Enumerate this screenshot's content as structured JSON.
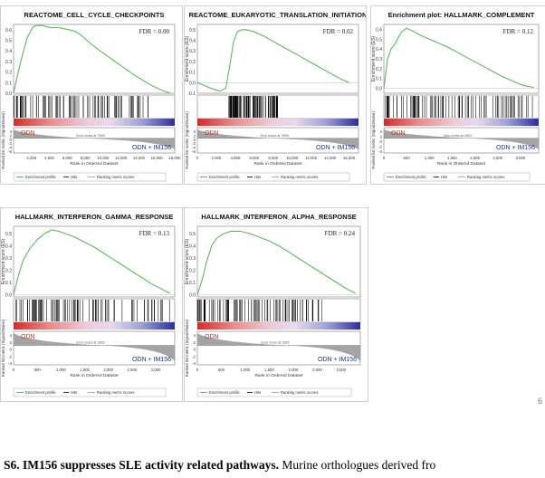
{
  "panels": [
    {
      "title": "REACTOME_CELL_CYCLE_CHECKPOINTS",
      "fdr": "FDR = 0.00",
      "es_yticks": [
        "0.6",
        "0.5",
        "0.4",
        "0.3",
        "0.2",
        "0.1",
        "0.0"
      ],
      "es_axis_label": "",
      "metric_axis_label": "Ranked list metric (Signal2Noise)",
      "metric_yticks": [
        "4",
        "2",
        "0",
        "-2",
        "-4",
        "-6"
      ],
      "xticks": [
        "2,000",
        "4,000",
        "6,000",
        "8,000",
        "10,000",
        "12,000",
        "14,000",
        "16,000",
        "18,000"
      ],
      "xlabel": "Rank in Ordered Dataset",
      "zero_cross": "Zero cross at 7800",
      "group_left": "ODN",
      "group_right": "ODN + IM156",
      "legend": [
        "Enrichment profile",
        "Hits",
        "Ranking metric scores"
      ],
      "chart_data": {
        "type": "line",
        "title": "REACTOME_CELL_CYCLE_CHECKPOINTS",
        "xlabel": "Rank in Ordered Dataset",
        "ylabel": "",
        "xlim": [
          0,
          18000
        ],
        "ylim": [
          0,
          0.65
        ],
        "series": [
          {
            "name": "Enrichment profile",
            "x": [
              0,
              300,
              800,
              1500,
              2200,
              2600,
              3200,
              4000,
              5000,
              5600,
              6200,
              7000,
              7800,
              8600,
              9500,
              10500,
              11500,
              12500,
              13500,
              14500,
              15500,
              16500,
              17500
            ],
            "values": [
              0.0,
              0.12,
              0.3,
              0.52,
              0.63,
              0.64,
              0.64,
              0.62,
              0.62,
              0.61,
              0.6,
              0.58,
              0.53,
              0.47,
              0.41,
              0.35,
              0.29,
              0.23,
              0.17,
              0.12,
              0.07,
              0.03,
              0.0
            ]
          }
        ],
        "hits_range": [
          0,
          15500
        ],
        "zero_cross": 7800
      }
    },
    {
      "title": "REACTOME_EUKARYOTIC_TRANSLATION_INITIATION",
      "fdr": "FDR = 0.02",
      "es_yticks": [
        "0.5",
        "0.4",
        "0.3",
        "0.2",
        "0.1",
        "0.0",
        "-0.1"
      ],
      "es_axis_label": "Enrichment score (ES)",
      "metric_axis_label": "Ranked list metric (Signal2Noise)",
      "metric_yticks": [
        "4",
        "2",
        "0",
        "-2",
        "-4",
        "-6"
      ],
      "xticks": [
        "0",
        "2,000",
        "4,000",
        "6,000",
        "8,000",
        "10,000",
        "12,000",
        "14,000",
        "16,000"
      ],
      "xlabel": "Rank in Ordered Dataset",
      "zero_cross": "Zero cross at 7800",
      "group_left": "ODN",
      "group_right": "ODN + IM156",
      "legend": [
        "Enrichment profile",
        "Hits",
        "Ranking metric scores"
      ],
      "chart_data": {
        "type": "line",
        "title": "REACTOME_EUKARYOTIC_TRANSLATION_INITIATION",
        "xlabel": "Rank in Ordered Dataset",
        "ylabel": "Enrichment score (ES)",
        "xlim": [
          0,
          17000
        ],
        "ylim": [
          -0.1,
          0.55
        ],
        "series": [
          {
            "name": "Enrichment profile",
            "x": [
              0,
              800,
              1600,
              2400,
              3000,
              3400,
              3800,
              4200,
              4700,
              5200,
              6000,
              7000,
              8000,
              9000,
              10000,
              11000,
              12000,
              13000,
              14000,
              15000,
              16000
            ],
            "values": [
              0.0,
              -0.03,
              -0.06,
              -0.08,
              -0.05,
              0.15,
              0.38,
              0.48,
              0.5,
              0.5,
              0.48,
              0.44,
              0.39,
              0.34,
              0.29,
              0.24,
              0.19,
              0.14,
              0.09,
              0.04,
              0.0
            ]
          }
        ],
        "hits_range": [
          3300,
          8500
        ],
        "zero_cross": 7800
      }
    },
    {
      "title": "Enrichment plot: HALLMARK_COMPLEMENT",
      "fdr": "FDR = 0.12",
      "es_yticks": [
        "0.6",
        "0.5",
        "0.4",
        "0.3",
        "0.2",
        "0.1",
        "0.0"
      ],
      "es_axis_label": "Enrichment score (ES)",
      "metric_axis_label": "Ranked list metric (Signal2Noise)",
      "metric_yticks": [
        "4",
        "2",
        "0",
        "-2",
        "-4"
      ],
      "xticks": [
        "0",
        "500",
        "1,000",
        "1,500",
        "2,000",
        "2,500",
        "3,000"
      ],
      "xlabel": "Rank in Ordered Dataset",
      "zero_cross": "Zero cross at 1851",
      "group_left": "ODN",
      "group_right": "ODN + IM156",
      "legend": [
        "Enrichment profile",
        "Hits",
        "Ranking metric scores"
      ],
      "chart_data": {
        "type": "line",
        "title": "Enrichment plot: HALLMARK_COMPLEMENT",
        "xlabel": "Rank in Ordered Dataset",
        "ylabel": "Enrichment score (ES)",
        "xlim": [
          0,
          3400
        ],
        "ylim": [
          -0.05,
          0.65
        ],
        "series": [
          {
            "name": "Enrichment profile",
            "x": [
              0,
              80,
              160,
              240,
              320,
              400,
              500,
              650,
              800,
              1000,
              1200,
              1400,
              1600,
              1800,
              2000,
              2200,
              2400,
              2600,
              2800,
              3000,
              3150,
              3300
            ],
            "values": [
              0.0,
              0.3,
              0.4,
              0.45,
              0.52,
              0.58,
              0.61,
              0.58,
              0.54,
              0.5,
              0.46,
              0.42,
              0.37,
              0.32,
              0.27,
              0.22,
              0.17,
              0.12,
              0.08,
              0.04,
              0.02,
              0.01
            ]
          }
        ],
        "hits_range": [
          0,
          3300
        ],
        "zero_cross": 1851
      }
    },
    {
      "title": "HALLMARK_INTERFERON_GAMMA_RESPONSE",
      "fdr": "FDR = 0.13",
      "es_yticks": [
        "0.5",
        "0.4",
        "0.3",
        "0.2",
        "0.1",
        "0.0"
      ],
      "es_axis_label": "Enrichment score (ES)",
      "metric_axis_label": "Ranked list metric (Signal2Noise)",
      "metric_yticks": [
        "4",
        "2",
        "0",
        "-2",
        "-4"
      ],
      "xticks": [
        "0",
        "500",
        "1,000",
        "1,500",
        "2,000",
        "2,500",
        "3,000"
      ],
      "xlabel": "Rank in Ordered Dataset",
      "zero_cross": "Zero cross at 1851",
      "group_left": "ODN",
      "group_right": "ODN + IM156",
      "legend": [
        "Enrichment profile",
        "Hits",
        "Ranking metric scores"
      ],
      "chart_data": {
        "type": "line",
        "title": "HALLMARK_INTERFERON_GAMMA_RESPONSE",
        "xlabel": "Rank in Ordered Dataset",
        "ylabel": "Enrichment score (ES)",
        "xlim": [
          0,
          3400
        ],
        "ylim": [
          -0.02,
          0.56
        ],
        "series": [
          {
            "name": "Enrichment profile",
            "x": [
              0,
              100,
              200,
              350,
              500,
              650,
              800,
              950,
              1100,
              1300,
              1500,
              1700,
              1900,
              2100,
              2300,
              2500,
              2700,
              2900,
              3100,
              3300
            ],
            "values": [
              0.0,
              0.15,
              0.28,
              0.38,
              0.45,
              0.5,
              0.53,
              0.52,
              0.5,
              0.47,
              0.43,
              0.39,
              0.34,
              0.29,
              0.24,
              0.19,
              0.14,
              0.09,
              0.05,
              0.01
            ]
          }
        ],
        "hits_range": [
          0,
          3300
        ],
        "zero_cross": 1851
      }
    },
    {
      "title": "HALLMARK_INTERFERON_ALPHA_RESPONSE",
      "fdr": "FDR = 0.24",
      "es_yticks": [
        "0.5",
        "0.4",
        "0.3",
        "0.2",
        "0.1",
        "0.0"
      ],
      "es_axis_label": "Enrichment score (ES)",
      "metric_axis_label": "Ranked list metric (Signal2Noise)",
      "metric_yticks": [
        "4",
        "2",
        "0",
        "-2",
        "-4"
      ],
      "xticks": [
        "0",
        "500",
        "1,000",
        "1,500",
        "2,000",
        "2,500",
        "3,000"
      ],
      "xlabel": "Rank in Ordered Dataset",
      "zero_cross": "Zero cross at 1851",
      "group_left": "ODN",
      "group_right": "ODN + IM156",
      "legend": [
        "Enrichment profile",
        "Hits",
        "Ranking metric scores"
      ],
      "chart_data": {
        "type": "line",
        "title": "HALLMARK_INTERFERON_ALPHA_RESPONSE",
        "xlabel": "Rank in Ordered Dataset",
        "ylabel": "Enrichment score (ES)",
        "xlim": [
          0,
          3400
        ],
        "ylim": [
          -0.02,
          0.56
        ],
        "series": [
          {
            "name": "Enrichment profile",
            "x": [
              0,
              100,
              200,
              300,
              400,
              550,
              700,
              900,
              1100,
              1300,
              1500,
              1700,
              1900,
              2100,
              2300,
              2500,
              2700,
              2900,
              3100,
              3300
            ],
            "values": [
              0.0,
              0.12,
              0.28,
              0.4,
              0.46,
              0.5,
              0.52,
              0.52,
              0.5,
              0.47,
              0.44,
              0.4,
              0.35,
              0.3,
              0.25,
              0.2,
              0.15,
              0.1,
              0.05,
              0.01
            ]
          }
        ],
        "hits_range": [
          0,
          2600
        ],
        "zero_cross": 1851
      }
    }
  ],
  "caption": {
    "bold": "S6. IM156 suppresses SLE activity related pathways.",
    "rest": " Murine orthologues derived fro"
  },
  "page_mark": "6"
}
